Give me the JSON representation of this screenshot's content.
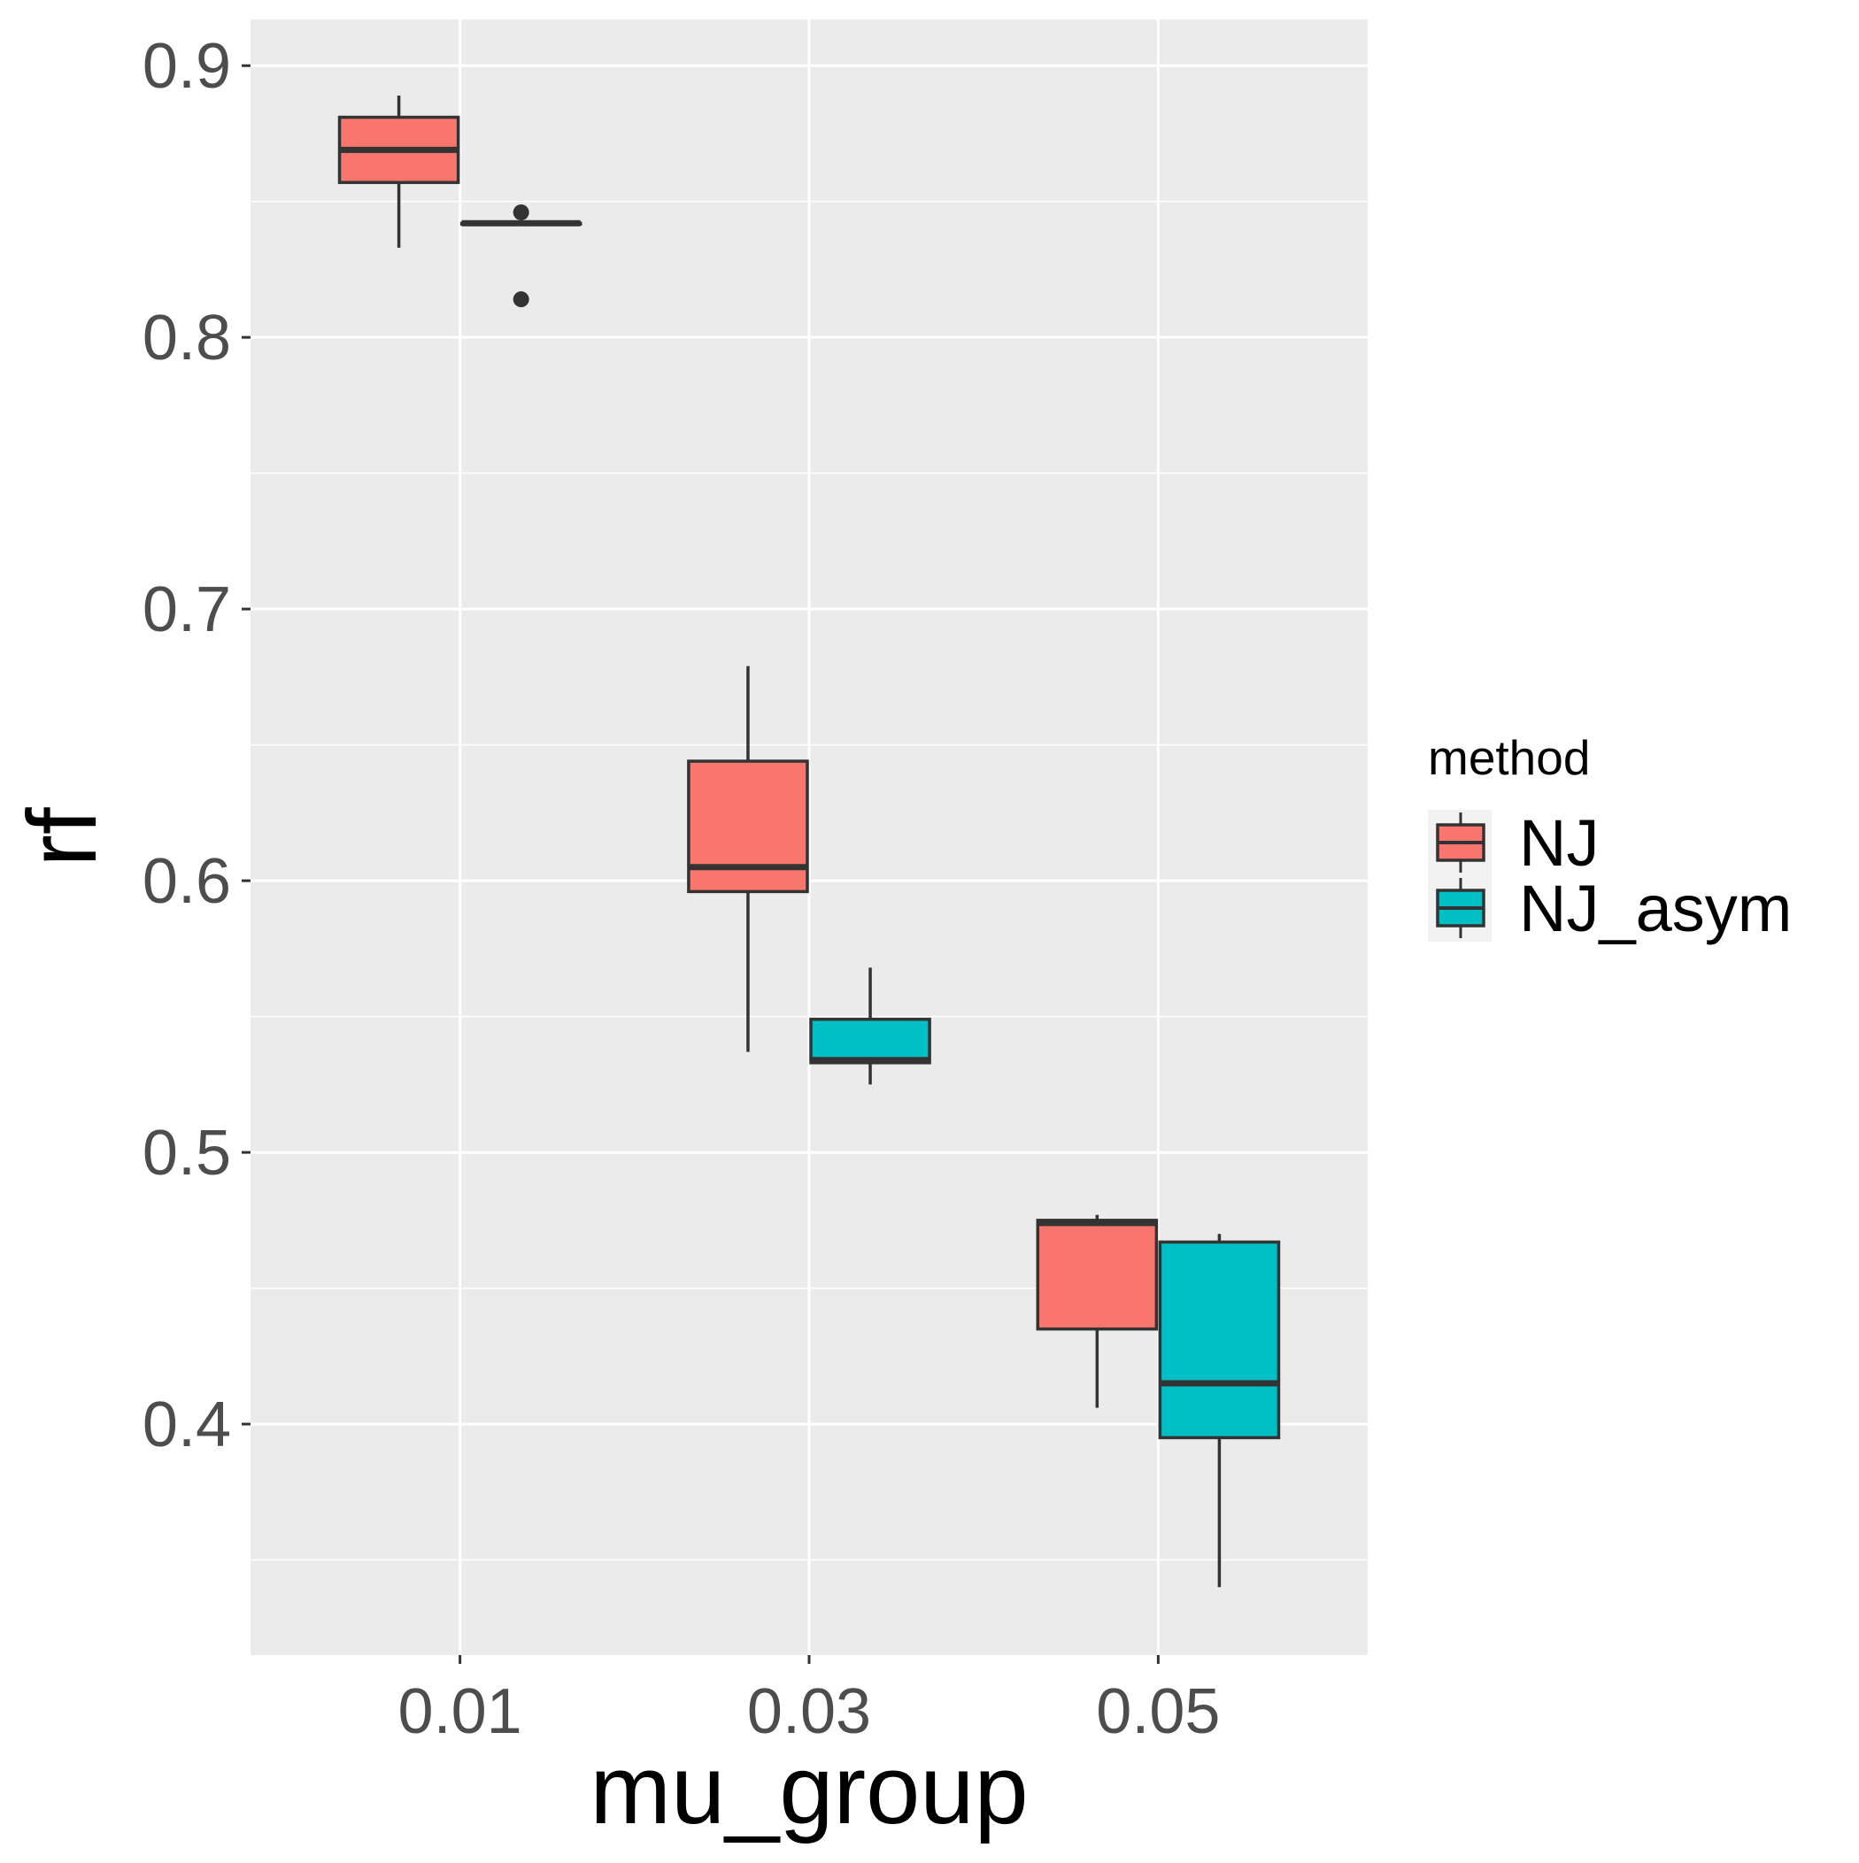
{
  "chart_data": {
    "type": "boxplot",
    "xlabel": "mu_group",
    "ylabel": "rf",
    "categories": [
      "0.01",
      "0.03",
      "0.05"
    ],
    "y_ticks": [
      "0.4",
      "0.5",
      "0.6",
      "0.7",
      "0.8",
      "0.9"
    ],
    "ylim": [
      0.315,
      0.917
    ],
    "grid": true,
    "legend": {
      "title": "method",
      "position": "right",
      "entries": [
        "NJ",
        "NJ_asym"
      ]
    },
    "series": [
      {
        "name": "NJ",
        "color": "#F8766D",
        "boxes": [
          {
            "category": "0.01",
            "min": 0.833,
            "q1": 0.857,
            "median": 0.869,
            "q3": 0.881,
            "max": 0.889,
            "outliers": []
          },
          {
            "category": "0.03",
            "min": 0.537,
            "q1": 0.596,
            "median": 0.605,
            "q3": 0.644,
            "max": 0.679,
            "outliers": []
          },
          {
            "category": "0.05",
            "min": 0.406,
            "q1": 0.435,
            "median": 0.474,
            "q3": 0.475,
            "max": 0.477,
            "outliers": []
          }
        ]
      },
      {
        "name": "NJ_asym",
        "color": "#00BFC4",
        "boxes": [
          {
            "category": "0.01",
            "min": 0.842,
            "q1": 0.842,
            "median": 0.842,
            "q3": 0.842,
            "max": 0.842,
            "outliers": [
              0.846,
              0.814
            ]
          },
          {
            "category": "0.03",
            "min": 0.525,
            "q1": 0.533,
            "median": 0.534,
            "q3": 0.549,
            "max": 0.568,
            "outliers": []
          },
          {
            "category": "0.05",
            "min": 0.34,
            "q1": 0.395,
            "median": 0.415,
            "q3": 0.467,
            "max": 0.47,
            "outliers": []
          }
        ]
      }
    ]
  }
}
